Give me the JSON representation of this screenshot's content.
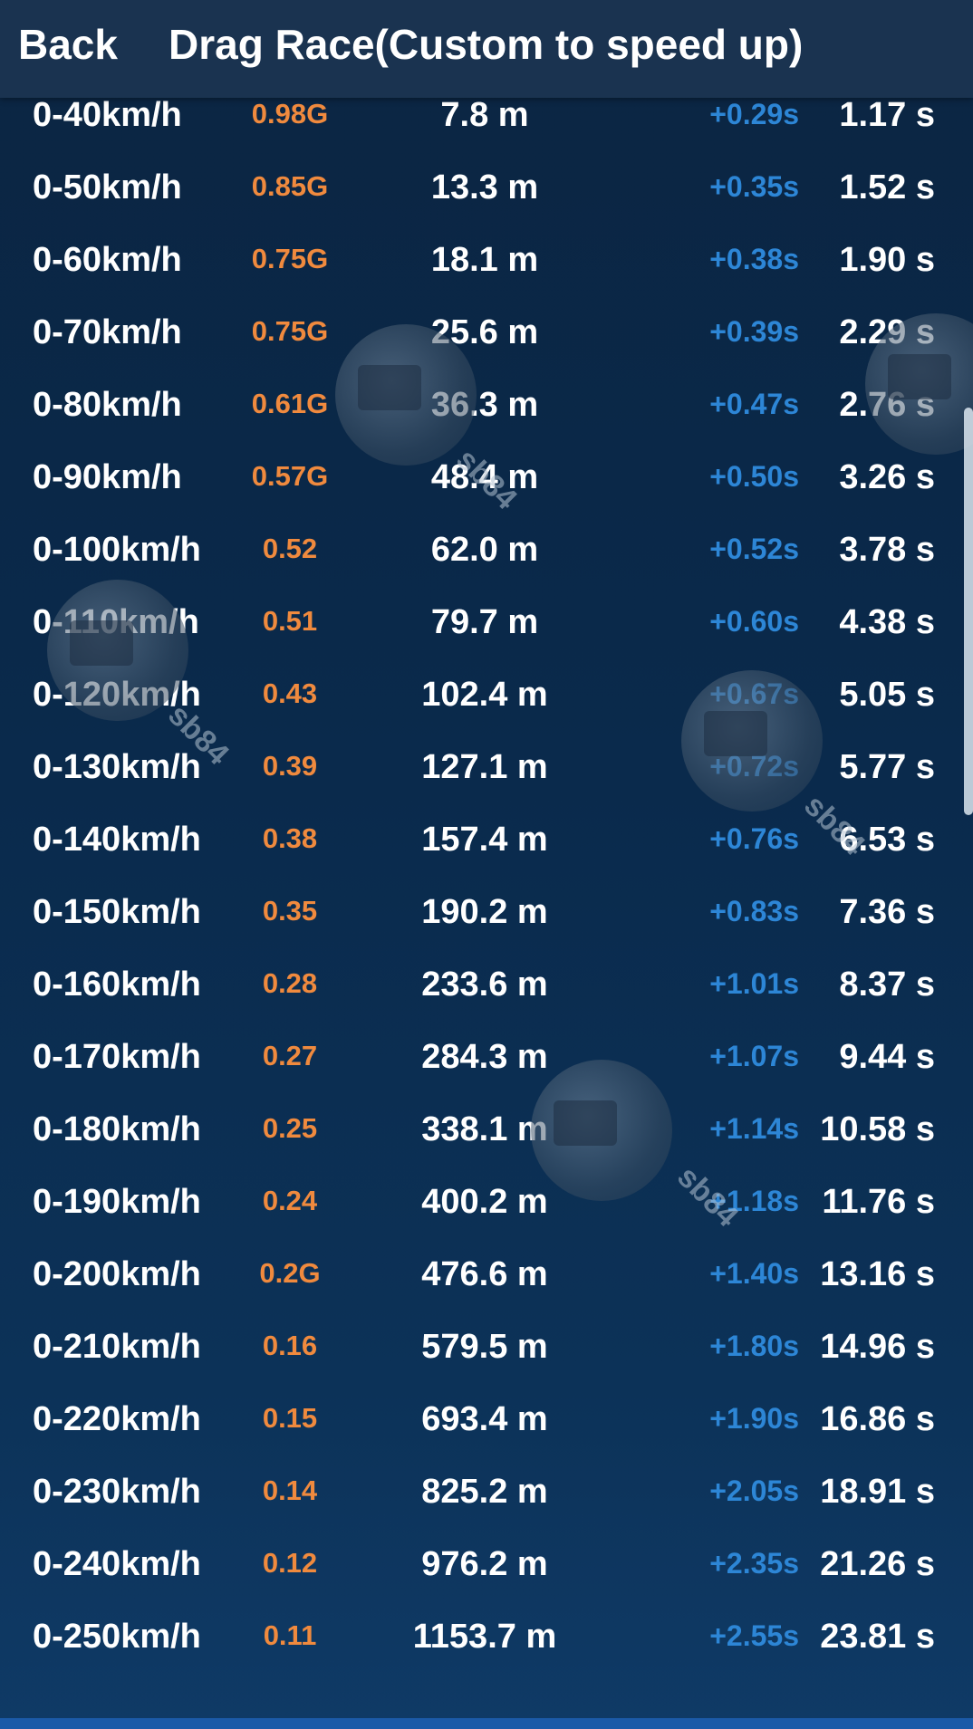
{
  "header": {
    "back_label": "Back",
    "title": "Drag Race(Custom to speed up)"
  },
  "rows": [
    {
      "speed": "0-40km/h",
      "g": "0.98G",
      "distance": "7.8 m",
      "delta": "+0.29s",
      "time": "1.17 s"
    },
    {
      "speed": "0-50km/h",
      "g": "0.85G",
      "distance": "13.3 m",
      "delta": "+0.35s",
      "time": "1.52 s"
    },
    {
      "speed": "0-60km/h",
      "g": "0.75G",
      "distance": "18.1 m",
      "delta": "+0.38s",
      "time": "1.90 s"
    },
    {
      "speed": "0-70km/h",
      "g": "0.75G",
      "distance": "25.6 m",
      "delta": "+0.39s",
      "time": "2.29 s"
    },
    {
      "speed": "0-80km/h",
      "g": "0.61G",
      "distance": "36.3 m",
      "delta": "+0.47s",
      "time": "2.76 s"
    },
    {
      "speed": "0-90km/h",
      "g": "0.57G",
      "distance": "48.4 m",
      "delta": "+0.50s",
      "time": "3.26 s"
    },
    {
      "speed": "0-100km/h",
      "g": "0.52",
      "distance": "62.0 m",
      "delta": "+0.52s",
      "time": "3.78 s"
    },
    {
      "speed": "0-110km/h",
      "g": "0.51",
      "distance": "79.7 m",
      "delta": "+0.60s",
      "time": "4.38 s"
    },
    {
      "speed": "0-120km/h",
      "g": "0.43",
      "distance": "102.4 m",
      "delta": "+0.67s",
      "time": "5.05 s"
    },
    {
      "speed": "0-130km/h",
      "g": "0.39",
      "distance": "127.1 m",
      "delta": "+0.72s",
      "time": "5.77 s"
    },
    {
      "speed": "0-140km/h",
      "g": "0.38",
      "distance": "157.4 m",
      "delta": "+0.76s",
      "time": "6.53 s"
    },
    {
      "speed": "0-150km/h",
      "g": "0.35",
      "distance": "190.2 m",
      "delta": "+0.83s",
      "time": "7.36 s"
    },
    {
      "speed": "0-160km/h",
      "g": "0.28",
      "distance": "233.6 m",
      "delta": "+1.01s",
      "time": "8.37 s"
    },
    {
      "speed": "0-170km/h",
      "g": "0.27",
      "distance": "284.3 m",
      "delta": "+1.07s",
      "time": "9.44 s"
    },
    {
      "speed": "0-180km/h",
      "g": "0.25",
      "distance": "338.1 m",
      "delta": "+1.14s",
      "time": "10.58 s"
    },
    {
      "speed": "0-190km/h",
      "g": "0.24",
      "distance": "400.2 m",
      "delta": "+1.18s",
      "time": "11.76 s"
    },
    {
      "speed": "0-200km/h",
      "g": "0.2G",
      "distance": "476.6 m",
      "delta": "+1.40s",
      "time": "13.16 s"
    },
    {
      "speed": "0-210km/h",
      "g": "0.16",
      "distance": "579.5 m",
      "delta": "+1.80s",
      "time": "14.96 s"
    },
    {
      "speed": "0-220km/h",
      "g": "0.15",
      "distance": "693.4 m",
      "delta": "+1.90s",
      "time": "16.86 s"
    },
    {
      "speed": "0-230km/h",
      "g": "0.14",
      "distance": "825.2 m",
      "delta": "+2.05s",
      "time": "18.91 s"
    },
    {
      "speed": "0-240km/h",
      "g": "0.12",
      "distance": "976.2 m",
      "delta": "+2.35s",
      "time": "21.26 s"
    },
    {
      "speed": "0-250km/h",
      "g": "0.11",
      "distance": "1153.7 m",
      "delta": "+2.55s",
      "time": "23.81 s"
    }
  ],
  "watermark": {
    "text": "sb84"
  },
  "colors": {
    "g_value": "#f08a3e",
    "delta": "#2d86d6",
    "background": "#0a2a4c",
    "header": "#1a3350"
  }
}
